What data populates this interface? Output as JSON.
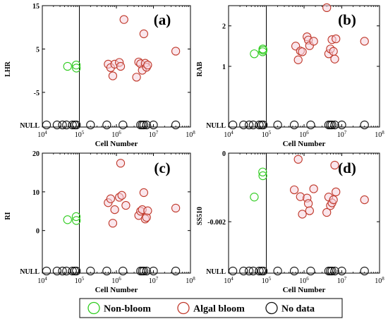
{
  "colors": {
    "non_bloom": "#2ecc1e",
    "algal_bloom": "#c0392b",
    "algal_fill": "#f6d2dc",
    "no_data": "#111111",
    "axis": "#000000"
  },
  "legend": {
    "items": [
      {
        "label": "Non-bloom",
        "color_key": "non_bloom"
      },
      {
        "label": "Algal bloom",
        "color_key": "algal_bloom"
      },
      {
        "label": "No data",
        "color_key": "no_data"
      }
    ]
  },
  "chart_data": [
    {
      "type": "scatter",
      "panel": "(a)",
      "xlabel": "Cell Number",
      "ylabel": "LHR",
      "xscale": "log",
      "xlim": [
        10000,
        100000000
      ],
      "xticks": [
        10000,
        100000,
        1000000,
        10000000,
        100000000
      ],
      "xticklabels": [
        "10^4",
        "10^5",
        "10^6",
        "10^7",
        "10^8"
      ],
      "ylim": [
        -13,
        15
      ],
      "yticks": [
        15,
        5,
        -5
      ],
      "yticklabels": [
        "15",
        "5",
        "-5"
      ],
      "null_label": "NULL",
      "vline_x": 100000,
      "series": [
        {
          "name": "Non-bloom",
          "points": [
            [
              48000,
              1
            ],
            [
              82000,
              1.3
            ],
            [
              83000,
              0.6
            ]
          ]
        },
        {
          "name": "Algal bloom",
          "points": [
            [
              600000,
              1.5
            ],
            [
              700000,
              0.7
            ],
            [
              800000,
              -1.2
            ],
            [
              900000,
              1.5
            ],
            [
              1200000,
              1.9
            ],
            [
              1300000,
              1.0
            ],
            [
              1600000,
              11.8
            ],
            [
              3500000,
              -1.5
            ],
            [
              4000000,
              2.0
            ],
            [
              4500000,
              1.6
            ],
            [
              5000000,
              0.1
            ],
            [
              5500000,
              8.5
            ],
            [
              6000000,
              1.7
            ],
            [
              6500000,
              0.8
            ],
            [
              7000000,
              1.3
            ],
            [
              40000000,
              4.5
            ]
          ]
        },
        {
          "name": "No data",
          "points": [
            [
              13000,
              null
            ],
            [
              25000,
              null
            ],
            [
              35000,
              null
            ],
            [
              45000,
              null
            ],
            [
              65000,
              null
            ],
            [
              75000,
              null
            ],
            [
              83000,
              null
            ],
            [
              200000,
              null
            ],
            [
              550000,
              null
            ],
            [
              1500000,
              null
            ],
            [
              4500000,
              null
            ],
            [
              5000000,
              null
            ],
            [
              5500000,
              null
            ],
            [
              6500000,
              null
            ],
            [
              10000000,
              null
            ],
            [
              40000000,
              null
            ]
          ]
        }
      ]
    },
    {
      "type": "scatter",
      "panel": "(b)",
      "xlabel": "Cell Number",
      "ylabel": "RAB",
      "xscale": "log",
      "xlim": [
        10000,
        100000000
      ],
      "xticks": [
        10000,
        100000,
        1000000,
        10000000,
        100000000
      ],
      "xticklabels": [
        "10^4",
        "10^5",
        "10^6",
        "10^7",
        "10^8"
      ],
      "ylim": [
        -0.5,
        2.5
      ],
      "yticks": [
        2,
        1
      ],
      "yticklabels": [
        "2",
        "1"
      ],
      "null_label": "NULL",
      "vline_x": 100000,
      "series": [
        {
          "name": "Non-bloom",
          "points": [
            [
              48000,
              1.31
            ],
            [
              80000,
              1.36
            ],
            [
              81000,
              1.43
            ],
            [
              82000,
              1.4
            ]
          ]
        },
        {
          "name": "Algal bloom",
          "points": [
            [
              600000,
              1.5
            ],
            [
              700000,
              1.16
            ],
            [
              800000,
              1.38
            ],
            [
              900000,
              1.36
            ],
            [
              1200000,
              1.73
            ],
            [
              1300000,
              1.65
            ],
            [
              1400000,
              1.51
            ],
            [
              1800000,
              1.62
            ],
            [
              4000000,
              2.45
            ],
            [
              4500000,
              1.31
            ],
            [
              5000000,
              1.43
            ],
            [
              5500000,
              1.66
            ],
            [
              6000000,
              1.37
            ],
            [
              6500000,
              1.18
            ],
            [
              7000000,
              1.68
            ],
            [
              40000000,
              1.62
            ]
          ]
        },
        {
          "name": "No data",
          "points": [
            [
              13000,
              null
            ],
            [
              25000,
              null
            ],
            [
              35000,
              null
            ],
            [
              45000,
              null
            ],
            [
              65000,
              null
            ],
            [
              75000,
              null
            ],
            [
              83000,
              null
            ],
            [
              200000,
              null
            ],
            [
              550000,
              null
            ],
            [
              1500000,
              null
            ],
            [
              4500000,
              null
            ],
            [
              5000000,
              null
            ],
            [
              5500000,
              null
            ],
            [
              6500000,
              null
            ],
            [
              10000000,
              null
            ],
            [
              40000000,
              null
            ]
          ]
        }
      ]
    },
    {
      "type": "scatter",
      "panel": "(c)",
      "xlabel": "Cell Number",
      "ylabel": "RI",
      "xscale": "log",
      "xlim": [
        10000,
        100000000
      ],
      "xticks": [
        10000,
        100000,
        1000000,
        10000000,
        100000000
      ],
      "xticklabels": [
        "10^4",
        "10^5",
        "10^6",
        "10^7",
        "10^8"
      ],
      "ylim": [
        -11,
        20
      ],
      "yticks": [
        20,
        10,
        0
      ],
      "yticklabels": [
        "20",
        "10",
        "0"
      ],
      "null_label": "NULL",
      "vline_x": 100000,
      "series": [
        {
          "name": "Non-bloom",
          "points": [
            [
              48000,
              2.8
            ],
            [
              82000,
              3.6
            ],
            [
              83000,
              2.6
            ]
          ]
        },
        {
          "name": "Algal bloom",
          "points": [
            [
              600000,
              7.2
            ],
            [
              700000,
              8.2
            ],
            [
              800000,
              1.9
            ],
            [
              900000,
              5.4
            ],
            [
              1200000,
              8.6
            ],
            [
              1300000,
              17.4
            ],
            [
              1400000,
              9.1
            ],
            [
              1800000,
              6.5
            ],
            [
              4000000,
              3.9
            ],
            [
              4500000,
              5.0
            ],
            [
              5000000,
              5.4
            ],
            [
              5500000,
              9.8
            ],
            [
              6000000,
              3.0
            ],
            [
              6500000,
              3.4
            ],
            [
              7000000,
              5.1
            ],
            [
              40000000,
              5.8
            ]
          ]
        },
        {
          "name": "No data",
          "points": [
            [
              13000,
              null
            ],
            [
              25000,
              null
            ],
            [
              35000,
              null
            ],
            [
              45000,
              null
            ],
            [
              65000,
              null
            ],
            [
              75000,
              null
            ],
            [
              83000,
              null
            ],
            [
              200000,
              null
            ],
            [
              550000,
              null
            ],
            [
              1500000,
              null
            ],
            [
              4500000,
              null
            ],
            [
              5000000,
              null
            ],
            [
              5500000,
              null
            ],
            [
              6500000,
              null
            ],
            [
              10000000,
              null
            ],
            [
              40000000,
              null
            ]
          ]
        }
      ]
    },
    {
      "type": "scatter",
      "panel": "(d)",
      "xlabel": "Cell Number",
      "ylabel": "SS510",
      "xscale": "log",
      "xlim": [
        10000,
        100000000
      ],
      "xticks": [
        10000,
        100000,
        1000000,
        10000000,
        100000000
      ],
      "xticklabels": [
        "10^4",
        "10^5",
        "10^6",
        "10^7",
        "10^8"
      ],
      "ylim": [
        -0.0035,
        0
      ],
      "yticks": [
        0,
        -0.002
      ],
      "yticklabels": [
        "0",
        "-0.002"
      ],
      "null_label": "NULL",
      "vline_x": 100000,
      "series": [
        {
          "name": "Non-bloom",
          "points": [
            [
              48000,
              -0.00128
            ],
            [
              80000,
              -0.00055
            ],
            [
              81000,
              -0.00066
            ]
          ]
        },
        {
          "name": "Algal bloom",
          "points": [
            [
              550000,
              -0.00107
            ],
            [
              700000,
              -0.00018
            ],
            [
              800000,
              -0.00127
            ],
            [
              900000,
              -0.00178
            ],
            [
              1200000,
              -0.00131
            ],
            [
              1300000,
              -0.00147
            ],
            [
              1400000,
              -0.00168
            ],
            [
              1800000,
              -0.00104
            ],
            [
              4000000,
              -0.00173
            ],
            [
              4500000,
              -0.00128
            ],
            [
              5000000,
              -0.00153
            ],
            [
              5500000,
              -0.00145
            ],
            [
              6000000,
              -0.00136
            ],
            [
              6500000,
              -0.00035
            ],
            [
              7000000,
              -0.00113
            ],
            [
              40000000,
              -0.00136
            ]
          ]
        },
        {
          "name": "No data",
          "points": [
            [
              13000,
              null
            ],
            [
              25000,
              null
            ],
            [
              35000,
              null
            ],
            [
              45000,
              null
            ],
            [
              65000,
              null
            ],
            [
              75000,
              null
            ],
            [
              83000,
              null
            ],
            [
              200000,
              null
            ],
            [
              550000,
              null
            ],
            [
              1500000,
              null
            ],
            [
              4500000,
              null
            ],
            [
              5000000,
              null
            ],
            [
              5500000,
              null
            ],
            [
              6500000,
              null
            ],
            [
              10000000,
              null
            ],
            [
              40000000,
              null
            ]
          ]
        }
      ]
    }
  ]
}
